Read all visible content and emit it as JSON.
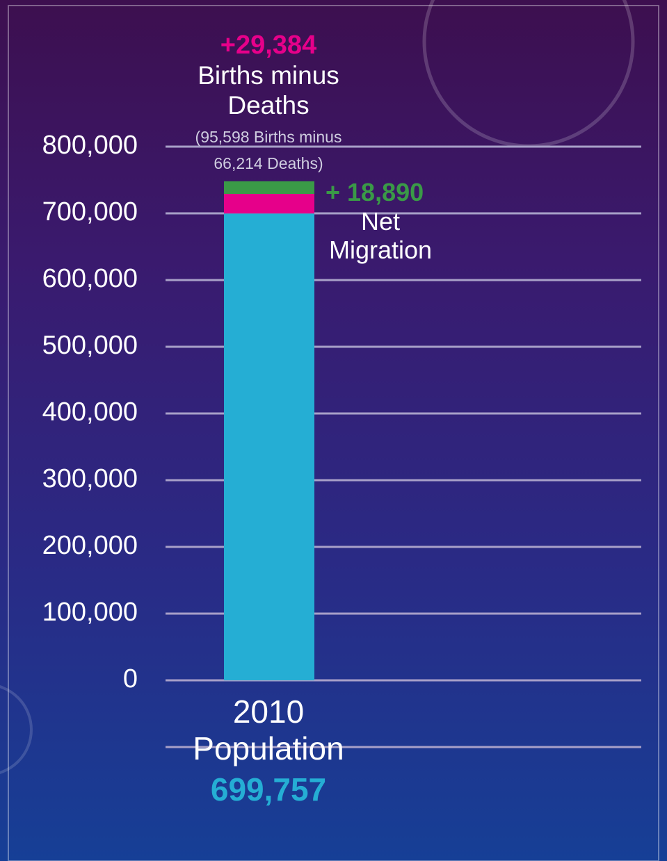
{
  "chart_data": {
    "type": "stacked_bar",
    "categories": [
      "2010"
    ],
    "series": [
      {
        "name": "Population",
        "color": "#25aed4",
        "values": [
          699757
        ],
        "value_labels": [
          "699,757"
        ]
      },
      {
        "name": "Births minus Deaths",
        "color": "#e6008a",
        "values": [
          29384
        ],
        "value_labels": [
          "+29,384"
        ]
      },
      {
        "name": "Net Migration",
        "color": "#3a9a47",
        "values": [
          18890
        ],
        "value_labels": [
          "+ 18,890"
        ]
      }
    ],
    "annotations": [
      "(95,598 Births minus 66,214 Deaths)"
    ],
    "ylim": [
      0,
      800000
    ],
    "yticks": [
      0,
      {
        "value": 100000,
        "label": "100,000"
      },
      {
        "value": 200000,
        "label": "200,000"
      },
      {
        "value": 300000,
        "label": "300,000"
      },
      {
        "value": 400000,
        "label": "400,000"
      },
      {
        "value": 500000,
        "label": "500,000"
      },
      {
        "value": 600000,
        "label": "600,000"
      },
      {
        "value": 700000,
        "label": "700,000"
      },
      {
        "value": 800000,
        "label": "800,000"
      }
    ],
    "grid": true
  }
}
